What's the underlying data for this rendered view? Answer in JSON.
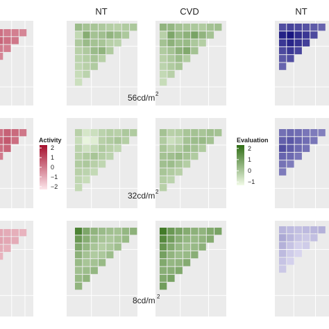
{
  "column_labels": {
    "green_nt": "NT",
    "green_cvd": "CVD",
    "blue_nt": "NT"
  },
  "luminance_labels": {
    "top": "56cd/m",
    "middle": "32cd/m",
    "bottom": "8cd/m",
    "superscript": "2"
  },
  "legends": {
    "activity": {
      "title": "Activity",
      "ticks": [
        "2",
        "1",
        "0",
        "−1",
        "−2"
      ],
      "tick_values": [
        2,
        1,
        0,
        -1,
        -2
      ],
      "range": [
        -2.3,
        2.3
      ],
      "color_high": "#a50f2d",
      "color_low": "#fde7ec"
    },
    "evaluation": {
      "title": "Evaluation",
      "ticks": [
        "2",
        "1",
        "0",
        "−1"
      ],
      "tick_values": [
        2,
        1,
        0,
        -1
      ],
      "range": [
        -1.3,
        2.3
      ],
      "color_high": "#2f6d14",
      "color_low": "#f2fbe8"
    }
  },
  "colors": {
    "panel_background": "#ebebeb",
    "grid": "#ffffff",
    "red_high": "#a50f2d",
    "red_low": "#fde7ec",
    "green_high": "#2f6d14",
    "green_low": "#f2fbe8",
    "blue_high": "#0d0a7a",
    "blue_low": "#efecfb"
  },
  "chart_data": {
    "type": "heatmap",
    "description_of_layout": "3 luminance rows x (Activity NT, Evaluation NT, Evaluation CVD, third-measure NT) triangular heatmaps",
    "luminance_levels": [
      "56cd/m2",
      "32cd/m2",
      "8cd/m2"
    ],
    "panels": [
      {
        "measure": "Evaluation",
        "vision": "NT",
        "luminance": "56cd/m2",
        "intensity": [
          [
            0.45,
            0.4,
            0.38,
            0.35,
            0.32,
            0.3,
            0.34,
            0.36
          ],
          [
            0.25,
            0.55,
            0.4,
            0.42,
            0.5,
            0.44,
            0.36,
            0.0
          ],
          [
            0.35,
            0.45,
            0.4,
            0.38,
            0.3,
            0.28,
            0.0,
            0.0
          ],
          [
            0.3,
            0.35,
            0.45,
            0.5,
            0.34,
            0.0,
            0.0,
            0.0
          ],
          [
            0.28,
            0.32,
            0.38,
            0.3,
            0.0,
            0.0,
            0.0,
            0.0
          ],
          [
            0.26,
            0.3,
            0.34,
            0.0,
            0.0,
            0.0,
            0.0,
            0.0
          ],
          [
            0.22,
            0.28,
            0.0,
            0.0,
            0.0,
            0.0,
            0.0,
            0.0
          ],
          [
            0.2,
            0.0,
            0.0,
            0.0,
            0.0,
            0.0,
            0.0,
            0.0
          ]
        ]
      },
      {
        "measure": "Evaluation",
        "vision": "CVD",
        "luminance": "56cd/m2",
        "intensity": [
          [
            0.5,
            0.48,
            0.4,
            0.38,
            0.36,
            0.34,
            0.4,
            0.42
          ],
          [
            0.3,
            0.6,
            0.46,
            0.52,
            0.62,
            0.5,
            0.4,
            0.0
          ],
          [
            0.4,
            0.52,
            0.44,
            0.46,
            0.36,
            0.32,
            0.0,
            0.0
          ],
          [
            0.34,
            0.4,
            0.52,
            0.58,
            0.4,
            0.0,
            0.0,
            0.0
          ],
          [
            0.3,
            0.36,
            0.44,
            0.34,
            0.0,
            0.0,
            0.0,
            0.0
          ],
          [
            0.28,
            0.34,
            0.38,
            0.0,
            0.0,
            0.0,
            0.0,
            0.0
          ],
          [
            0.24,
            0.3,
            0.0,
            0.0,
            0.0,
            0.0,
            0.0,
            0.0
          ],
          [
            0.22,
            0.0,
            0.0,
            0.0,
            0.0,
            0.0,
            0.0,
            0.0
          ]
        ]
      },
      {
        "measure": "Evaluation",
        "vision": "NT",
        "luminance": "32cd/m2",
        "intensity": [
          [
            0.3,
            0.15,
            0.2,
            0.28,
            0.32,
            0.3,
            0.36,
            0.34
          ],
          [
            0.22,
            0.05,
            0.1,
            0.3,
            0.34,
            0.38,
            0.32,
            0.0
          ],
          [
            0.28,
            0.18,
            0.24,
            0.34,
            0.3,
            0.26,
            0.0,
            0.0
          ],
          [
            0.3,
            0.34,
            0.38,
            0.32,
            0.28,
            0.0,
            0.0,
            0.0
          ],
          [
            0.34,
            0.36,
            0.3,
            0.26,
            0.0,
            0.0,
            0.0,
            0.0
          ],
          [
            0.3,
            0.28,
            0.24,
            0.0,
            0.0,
            0.0,
            0.0,
            0.0
          ],
          [
            0.26,
            0.22,
            0.0,
            0.0,
            0.0,
            0.0,
            0.0,
            0.0
          ],
          [
            0.24,
            0.0,
            0.0,
            0.0,
            0.0,
            0.0,
            0.0,
            0.0
          ]
        ]
      },
      {
        "measure": "Evaluation",
        "vision": "CVD",
        "luminance": "32cd/m2",
        "intensity": [
          [
            0.4,
            0.3,
            0.32,
            0.38,
            0.4,
            0.38,
            0.42,
            0.4
          ],
          [
            0.34,
            0.2,
            0.26,
            0.4,
            0.44,
            0.46,
            0.4,
            0.0
          ],
          [
            0.38,
            0.3,
            0.34,
            0.44,
            0.4,
            0.34,
            0.0,
            0.0
          ],
          [
            0.4,
            0.42,
            0.46,
            0.4,
            0.34,
            0.0,
            0.0,
            0.0
          ],
          [
            0.42,
            0.44,
            0.38,
            0.32,
            0.0,
            0.0,
            0.0,
            0.0
          ],
          [
            0.38,
            0.34,
            0.3,
            0.0,
            0.0,
            0.0,
            0.0,
            0.0
          ],
          [
            0.32,
            0.28,
            0.0,
            0.0,
            0.0,
            0.0,
            0.0,
            0.0
          ],
          [
            0.3,
            0.0,
            0.0,
            0.0,
            0.0,
            0.0,
            0.0,
            0.0
          ]
        ]
      },
      {
        "measure": "Evaluation",
        "vision": "NT",
        "luminance": "8cd/m2",
        "intensity": [
          [
            0.85,
            0.6,
            0.5,
            0.45,
            0.42,
            0.4,
            0.48,
            0.52
          ],
          [
            0.7,
            0.55,
            0.44,
            0.38,
            0.36,
            0.4,
            0.46,
            0.0
          ],
          [
            0.6,
            0.48,
            0.38,
            0.32,
            0.36,
            0.42,
            0.0,
            0.0
          ],
          [
            0.52,
            0.4,
            0.34,
            0.36,
            0.44,
            0.0,
            0.0,
            0.0
          ],
          [
            0.46,
            0.38,
            0.4,
            0.46,
            0.0,
            0.0,
            0.0,
            0.0
          ],
          [
            0.42,
            0.44,
            0.48,
            0.0,
            0.0,
            0.0,
            0.0,
            0.0
          ],
          [
            0.46,
            0.5,
            0.0,
            0.0,
            0.0,
            0.0,
            0.0,
            0.0
          ],
          [
            0.5,
            0.0,
            0.0,
            0.0,
            0.0,
            0.0,
            0.0,
            0.0
          ]
        ]
      },
      {
        "measure": "Evaluation",
        "vision": "CVD",
        "luminance": "8cd/m2",
        "intensity": [
          [
            0.9,
            0.7,
            0.62,
            0.56,
            0.52,
            0.5,
            0.58,
            0.62
          ],
          [
            0.8,
            0.66,
            0.54,
            0.48,
            0.46,
            0.5,
            0.56,
            0.0
          ],
          [
            0.72,
            0.58,
            0.48,
            0.42,
            0.46,
            0.52,
            0.0,
            0.0
          ],
          [
            0.64,
            0.5,
            0.44,
            0.46,
            0.54,
            0.0,
            0.0,
            0.0
          ],
          [
            0.58,
            0.48,
            0.5,
            0.56,
            0.0,
            0.0,
            0.0,
            0.0
          ],
          [
            0.54,
            0.54,
            0.58,
            0.0,
            0.0,
            0.0,
            0.0,
            0.0
          ],
          [
            0.58,
            0.62,
            0.0,
            0.0,
            0.0,
            0.0,
            0.0,
            0.0
          ],
          [
            0.66,
            0.0,
            0.0,
            0.0,
            0.0,
            0.0,
            0.0,
            0.0
          ]
        ]
      },
      {
        "measure": "Activity",
        "vision": "NT",
        "luminance": "56cd/m2",
        "intensity": [
          [
            0.55,
            0.5,
            0.48,
            0.45
          ],
          [
            0.6,
            0.55,
            0.52,
            0.0
          ],
          [
            0.5,
            0.48,
            0.0,
            0.0
          ],
          [
            0.45,
            0.0,
            0.0,
            0.0
          ]
        ]
      },
      {
        "measure": "Activity",
        "vision": "NT",
        "luminance": "32cd/m2",
        "intensity": [
          [
            0.55,
            0.62,
            0.58,
            0.52
          ],
          [
            0.6,
            0.66,
            0.56,
            0.0
          ],
          [
            0.56,
            0.6,
            0.0,
            0.0
          ],
          [
            0.5,
            0.0,
            0.0,
            0.0
          ]
        ]
      },
      {
        "measure": "Activity",
        "vision": "NT",
        "luminance": "8cd/m2",
        "intensity": [
          [
            0.3,
            0.28,
            0.26,
            0.24
          ],
          [
            0.32,
            0.3,
            0.28,
            0.0
          ],
          [
            0.28,
            0.26,
            0.0,
            0.0
          ],
          [
            0.24,
            0.0,
            0.0,
            0.0
          ]
        ]
      },
      {
        "measure": "unlabeled",
        "vision": "NT",
        "luminance": "56cd/m2",
        "intensity": [
          [
            0.7,
            0.75,
            0.72,
            0.68,
            0.64,
            0.6
          ],
          [
            0.9,
            0.95,
            0.85,
            0.8,
            0.72,
            0.0
          ],
          [
            0.8,
            0.88,
            0.82,
            0.76,
            0.0,
            0.0
          ],
          [
            0.72,
            0.8,
            0.74,
            0.0,
            0.0,
            0.0
          ],
          [
            0.66,
            0.7,
            0.0,
            0.0,
            0.0,
            0.0
          ],
          [
            0.6,
            0.0,
            0.0,
            0.0,
            0.0,
            0.0
          ]
        ]
      },
      {
        "measure": "unlabeled",
        "vision": "NT",
        "luminance": "32cd/m2",
        "intensity": [
          [
            0.55,
            0.58,
            0.56,
            0.52,
            0.5,
            0.48
          ],
          [
            0.62,
            0.66,
            0.6,
            0.56,
            0.52,
            0.0
          ],
          [
            0.7,
            0.64,
            0.58,
            0.54,
            0.0,
            0.0
          ],
          [
            0.6,
            0.58,
            0.52,
            0.0,
            0.0,
            0.0
          ],
          [
            0.54,
            0.5,
            0.0,
            0.0,
            0.0,
            0.0
          ],
          [
            0.5,
            0.0,
            0.0,
            0.0,
            0.0,
            0.0
          ]
        ]
      },
      {
        "measure": "unlabeled",
        "vision": "NT",
        "luminance": "8cd/m2",
        "intensity": [
          [
            0.25,
            0.22,
            0.2,
            0.22,
            0.24,
            0.26
          ],
          [
            0.3,
            0.24,
            0.18,
            0.16,
            0.2,
            0.0
          ],
          [
            0.26,
            0.18,
            0.12,
            0.14,
            0.0,
            0.0
          ],
          [
            0.22,
            0.14,
            0.1,
            0.0,
            0.0,
            0.0
          ],
          [
            0.18,
            0.12,
            0.0,
            0.0,
            0.0,
            0.0
          ],
          [
            0.16,
            0.0,
            0.0,
            0.0,
            0.0,
            0.0
          ]
        ]
      }
    ]
  }
}
